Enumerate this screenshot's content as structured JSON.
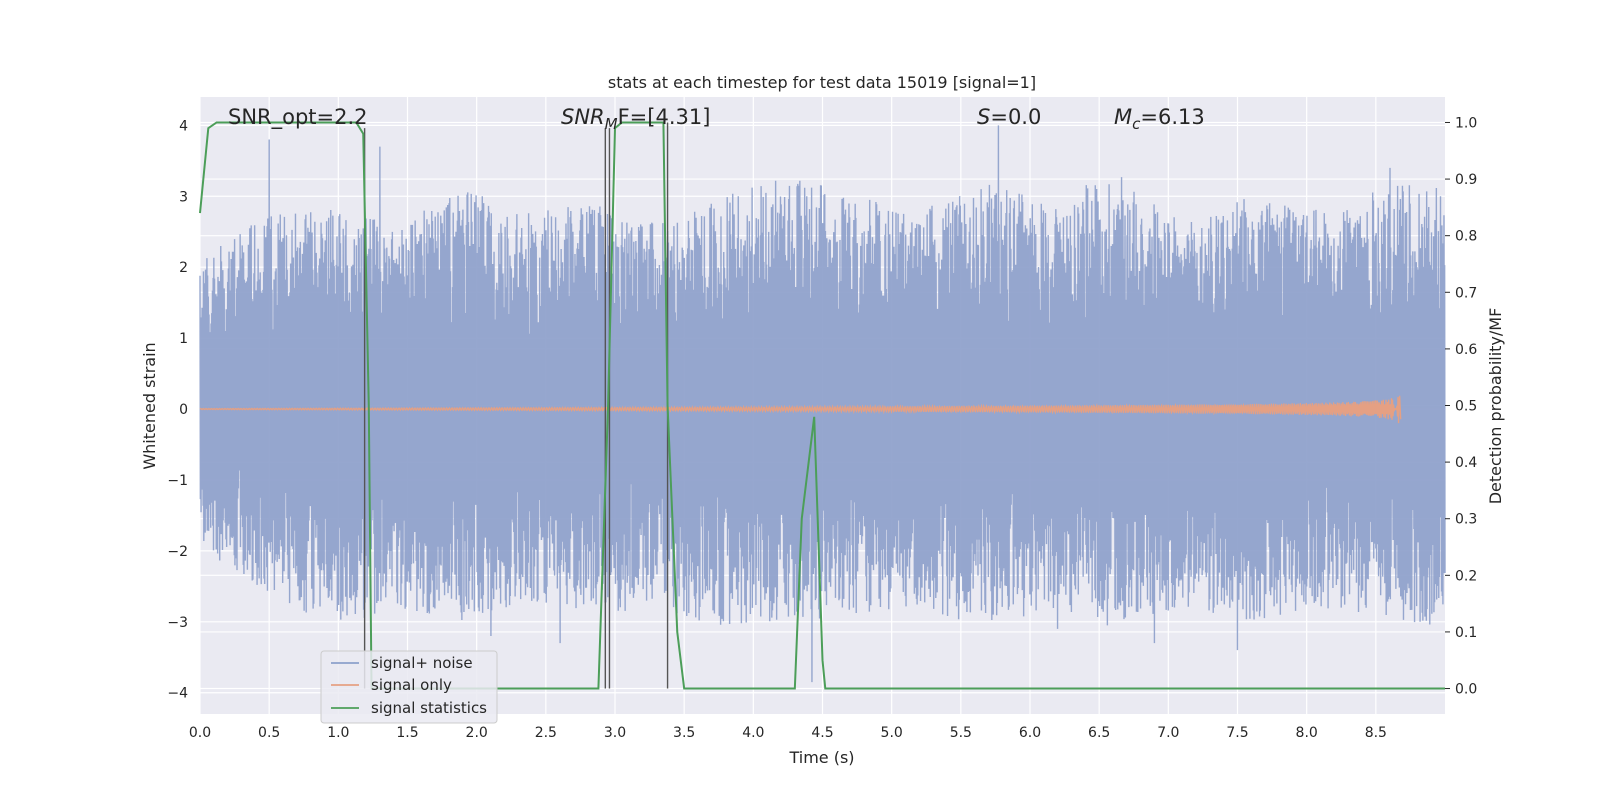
{
  "chart_data": {
    "type": "line",
    "title": "stats at each timestep for test data 15019 [signal=1]",
    "xlabel": "Time (s)",
    "ylabel": "Whitened strain",
    "y2label": "Detection probability/MF",
    "xlim": [
      0,
      9
    ],
    "ylim": [
      -4.3,
      4.4
    ],
    "y2lim": [
      -0.045,
      1.045
    ],
    "x_ticks": [
      0.0,
      0.5,
      1.0,
      1.5,
      2.0,
      2.5,
      3.0,
      3.5,
      4.0,
      4.5,
      5.0,
      5.5,
      6.0,
      6.5,
      7.0,
      7.5,
      8.0,
      8.5
    ],
    "x_tick_labels": [
      "0.0",
      "0.5",
      "1.0",
      "1.5",
      "2.0",
      "2.5",
      "3.0",
      "3.5",
      "4.0",
      "4.5",
      "5.0",
      "5.5",
      "6.0",
      "6.5",
      "7.0",
      "7.5",
      "8.0",
      "8.5"
    ],
    "y_ticks": [
      4,
      3,
      2,
      1,
      0,
      -1,
      -2,
      -3,
      -4
    ],
    "y_tick_labels": [
      "4",
      "3",
      "2",
      "1",
      "0",
      "−1",
      "−2",
      "−3",
      "−4"
    ],
    "y2_ticks": [
      1.0,
      0.9,
      0.8,
      0.7,
      0.6,
      0.5,
      0.4,
      0.3,
      0.2,
      0.1,
      0.0
    ],
    "y2_tick_labels": [
      "1.0",
      "0.9",
      "0.8",
      "0.7",
      "0.6",
      "0.5",
      "0.4",
      "0.3",
      "0.2",
      "0.1",
      "0.0"
    ],
    "grid": true,
    "legend_position": "lower-left",
    "annotations": {
      "snr_opt": "SNR_opt=2.2",
      "snr_mf_italic": "SNR",
      "snr_mf_sub": "M",
      "snr_mf_rest": "F=[4.31]",
      "s_italic": "S",
      "s_rest": "=0.0",
      "mc_italic": "M",
      "mc_sub": "c",
      "mc_rest": "=6.13"
    },
    "series": [
      {
        "name": "signal+ noise",
        "color": "#8da0cb",
        "axis": "left",
        "kind": "noise",
        "envelope_upper": [
          2.2,
          2.7,
          2.9,
          2.6,
          3.1,
          2.8,
          2.9,
          2.6,
          3.0,
          3.3,
          3.0,
          2.8,
          3.2,
          2.9,
          3.4,
          2.6,
          3.0,
          2.8,
          3.1,
          3.3
        ],
        "envelope_lower": [
          -2.0,
          -2.6,
          -3.1,
          -2.8,
          -3.0,
          -2.7,
          -2.9,
          -2.8,
          -3.1,
          -3.0,
          -2.9,
          -2.8,
          -3.1,
          -2.8,
          -3.1,
          -2.8,
          -3.0,
          -2.8,
          -2.9,
          -3.1
        ],
        "spikes": [
          [
            0.5,
            3.8
          ],
          [
            1.3,
            3.7
          ],
          [
            2.1,
            -3.2
          ],
          [
            2.6,
            -3.3
          ],
          [
            4.42,
            -3.85
          ],
          [
            5.77,
            4.0
          ],
          [
            6.2,
            -3.1
          ],
          [
            6.9,
            -3.3
          ],
          [
            7.5,
            -3.4
          ],
          [
            8.6,
            3.4
          ]
        ]
      },
      {
        "name": "signal only",
        "color": "#e5a083",
        "axis": "left",
        "kind": "chirp",
        "t_end": 8.68,
        "amplitude_end": 0.25
      },
      {
        "name": "signal statistics",
        "color": "#4c9e59",
        "axis": "right",
        "kind": "line",
        "x": [
          0.0,
          0.06,
          0.12,
          0.3,
          1.0,
          1.13,
          1.18,
          1.22,
          1.24,
          1.3,
          2.0,
          2.8,
          2.88,
          2.95,
          3.0,
          3.05,
          3.2,
          3.35,
          3.38,
          3.45,
          3.5,
          3.6,
          4.0,
          4.3,
          4.35,
          4.44,
          4.5,
          4.52,
          5.0,
          6.0,
          7.0,
          8.0,
          9.0
        ],
        "y": [
          0.84,
          0.99,
          1.0,
          1.0,
          1.0,
          1.0,
          0.98,
          0.5,
          0.0,
          0.0,
          0.0,
          0.0,
          0.0,
          0.5,
          0.99,
          1.0,
          1.0,
          1.0,
          0.5,
          0.1,
          0.0,
          0.0,
          0.0,
          0.0,
          0.3,
          0.48,
          0.05,
          0.0,
          0.0,
          0.0,
          0.0,
          0.0,
          0.0
        ]
      }
    ],
    "vertical_markers": [
      {
        "x": 2.93,
        "y2_from": 0.0,
        "y2_to": 0.99,
        "color": "#555555"
      },
      {
        "x": 2.96,
        "y2_from": 0.0,
        "y2_to": 0.99,
        "color": "#555555"
      },
      {
        "x": 3.38,
        "y2_from": 0.0,
        "y2_to": 1.0,
        "color": "#555555"
      },
      {
        "x": 1.19,
        "y2_from": 0.0,
        "y2_to": 0.99,
        "color": "#555555"
      }
    ]
  }
}
